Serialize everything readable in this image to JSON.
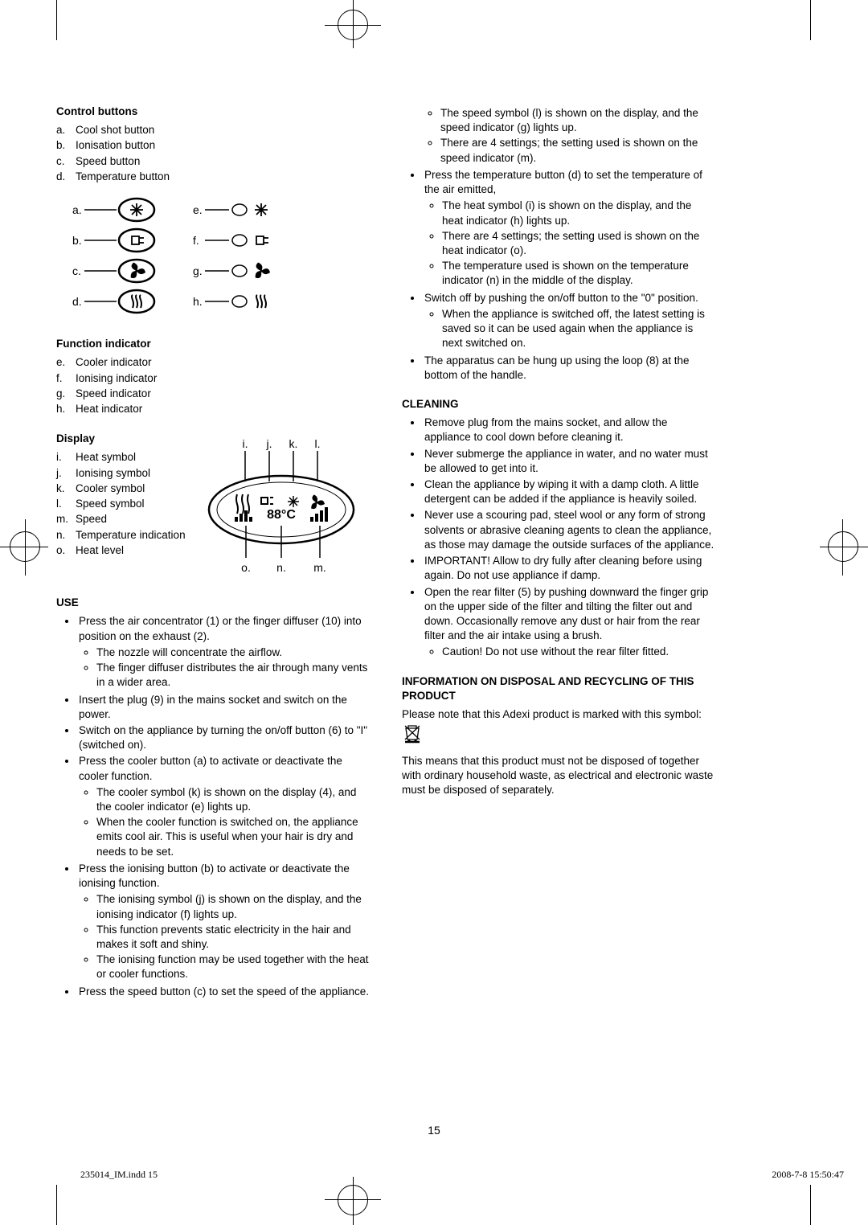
{
  "page_number": "15",
  "footer_left": "235014_IM.indd   15",
  "footer_right": "2008-7-8   15:50:47",
  "left": {
    "control_buttons_h": "Control buttons",
    "control_buttons": [
      {
        "l": "a.",
        "t": "Cool shot button"
      },
      {
        "l": "b.",
        "t": "Ionisation button"
      },
      {
        "l": "c.",
        "t": "Speed button"
      },
      {
        "l": "d.",
        "t": "Temperature button"
      }
    ],
    "function_indicator_h": "Function indicator",
    "function_indicator": [
      {
        "l": "e.",
        "t": "Cooler indicator"
      },
      {
        "l": "f.",
        "t": "Ionising indicator"
      },
      {
        "l": "g.",
        "t": "Speed indicator"
      },
      {
        "l": "h.",
        "t": "Heat indicator"
      }
    ],
    "display_h": "Display",
    "display": [
      {
        "l": "i.",
        "t": "Heat symbol"
      },
      {
        "l": "j.",
        "t": "Ionising symbol"
      },
      {
        "l": "k.",
        "t": "Cooler symbol"
      },
      {
        "l": "l.",
        "t": "Speed symbol"
      },
      {
        "l": "m.",
        "t": "Speed"
      },
      {
        "l": "n.",
        "t": "Temperature indication"
      },
      {
        "l": "o.",
        "t": "Heat level"
      }
    ],
    "use_h": "USE",
    "use": [
      {
        "t": "Press the air concentrator (1) or the finger diffuser (10) into position on the exhaust (2).",
        "sub": [
          "The nozzle will concentrate the airflow.",
          "The finger diffuser distributes the air through many vents in a wider area."
        ]
      },
      {
        "t": "Insert the plug (9) in the mains socket and switch on the power."
      },
      {
        "t": "Switch on the appliance by turning the on/off button (6) to \"I\" (switched on)."
      },
      {
        "t": "Press the cooler button (a) to activate or deactivate the cooler function.",
        "sub": [
          "The cooler symbol (k) is shown on the display (4), and the cooler indicator (e) lights up.",
          "When the cooler function is switched on, the appliance emits cool air. This is useful when your hair is dry and needs to be set."
        ]
      },
      {
        "t": "Press the ionising button (b) to activate or deactivate the ionising function.",
        "sub": [
          "The ionising symbol (j) is shown on the display, and the ionising indicator (f) lights up.",
          "This function prevents static electricity in the hair and makes it soft and shiny.",
          "The ionising function may be used together with the heat or cooler functions."
        ]
      },
      {
        "t": "Press the speed button (c) to set the speed of the appliance."
      }
    ]
  },
  "right": {
    "cont": [
      {
        "sub": [
          "The speed symbol (l) is shown on the display, and the speed indicator (g) lights up.",
          "There are 4 settings; the setting used is shown on the speed indicator (m)."
        ]
      },
      {
        "t": "Press the temperature button (d) to set the temperature of the air emitted,",
        "sub": [
          "The heat symbol (i) is shown on the display, and the heat indicator (h) lights up.",
          "There are 4 settings; the setting used is shown on the heat indicator (o).",
          "The temperature used is shown on the temperature indicator (n) in the middle of the display."
        ]
      },
      {
        "t": "Switch off by pushing the on/off button to the \"0\" position.",
        "sub": [
          "When the appliance is switched off, the latest setting is saved so it can be used again when the appliance is next switched on."
        ]
      },
      {
        "t": "The apparatus can be hung up using the loop (8) at the bottom of the handle."
      }
    ],
    "cleaning_h": "CLEANING",
    "cleaning": [
      {
        "t": "Remove plug from the mains socket, and allow the appliance to cool down before cleaning it."
      },
      {
        "t": "Never submerge the appliance in water, and no water must be allowed to get into it."
      },
      {
        "t": "Clean the appliance by wiping it with a damp cloth. A little detergent can be added if the appliance is heavily soiled."
      },
      {
        "t": "Never use a scouring pad, steel wool or any form of strong solvents or abrasive cleaning agents to clean the appliance, as those may damage the outside surfaces of the appliance."
      },
      {
        "t": "IMPORTANT! Allow to dry fully after cleaning before using again. Do not use appliance if damp."
      },
      {
        "t": "Open the rear filter (5) by pushing downward the finger grip on the upper side of the filter and tilting the filter out and down. Occasionally remove any dust or hair from the rear filter and the air intake using a brush.",
        "sub": [
          "Caution! Do not use without the rear filter fitted."
        ]
      }
    ],
    "disposal_h": "INFORMATION ON DISPOSAL AND RECYCLING OF THIS PRODUCT",
    "disposal_p1a": "Please note that this Adexi product is marked with this symbol:",
    "disposal_p2": "This means that this product must not be disposed of together with ordinary household waste, as electrical and electronic waste must be disposed of separately."
  },
  "diagram1": {
    "labels_left": [
      "a.",
      "b.",
      "c.",
      "d."
    ],
    "labels_right": [
      "e.",
      "f.",
      "g.",
      "h."
    ]
  },
  "diagram2": {
    "labels_top": [
      "i.",
      "j.",
      "k.",
      "l."
    ],
    "labels_bottom": [
      "o.",
      "n.",
      "m."
    ],
    "center_text": "88°C"
  }
}
